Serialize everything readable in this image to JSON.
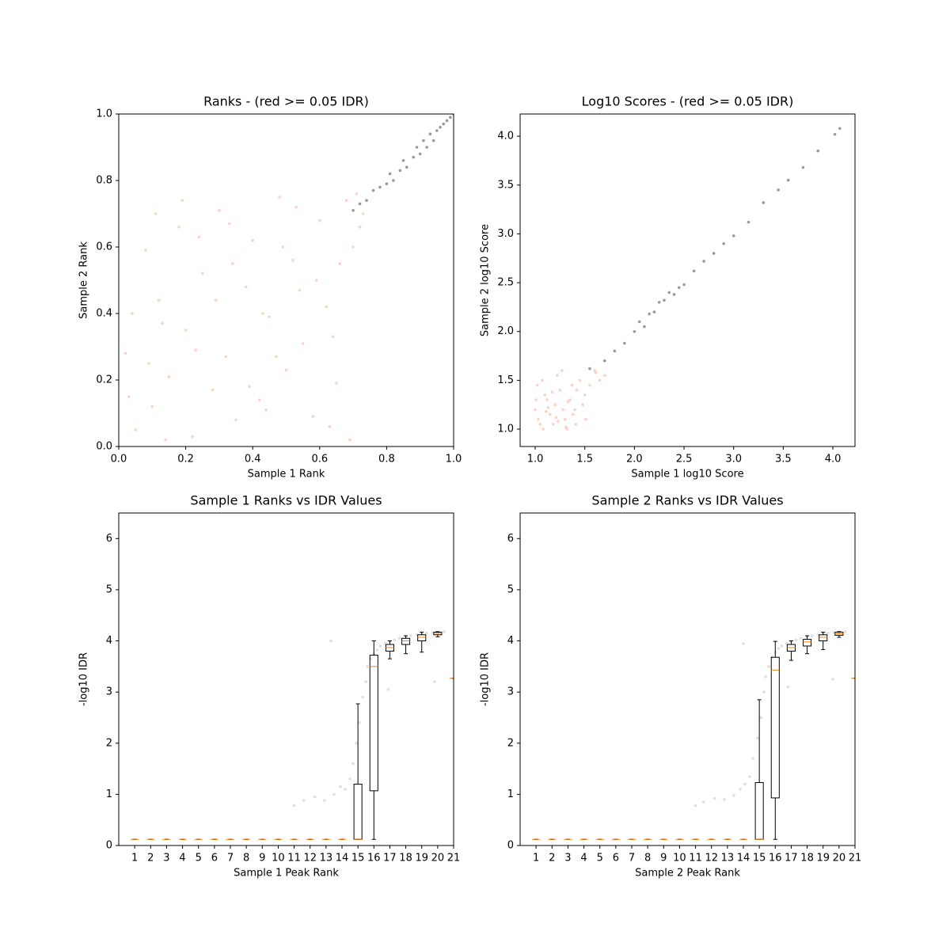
{
  "chart_data": [
    {
      "type": "scatter",
      "title": "Ranks - (red >= 0.05 IDR)",
      "x_label": "Sample 1 Rank",
      "y_label": "Sample 2 Rank",
      "xlim": [
        0,
        1
      ],
      "ylim": [
        0,
        1
      ],
      "xticks": [
        {
          "value": 0,
          "label": "0.0"
        },
        0.2,
        0.4,
        0.6,
        0.8,
        {
          "value": 1,
          "label": "1.0"
        }
      ],
      "yticks": [
        {
          "value": 0,
          "label": "0.0"
        },
        0.2,
        0.4,
        0.6,
        0.8,
        {
          "value": 1,
          "label": "1.0"
        }
      ],
      "series": [
        {
          "color": "#fc8d6a",
          "x": [
            0.02,
            0.05,
            0.08,
            0.1,
            0.12,
            0.15,
            0.18,
            0.2,
            0.22,
            0.25,
            0.28,
            0.3,
            0.32,
            0.35,
            0.38,
            0.4,
            0.42,
            0.45,
            0.48,
            0.5,
            0.52,
            0.55,
            0.58,
            0.6,
            0.62,
            0.65,
            0.68,
            0.7,
            0.72,
            0.04,
            0.14,
            0.24,
            0.34,
            0.44,
            0.54,
            0.64,
            0.09,
            0.19,
            0.29,
            0.39,
            0.49,
            0.59,
            0.69,
            0.03,
            0.13,
            0.23,
            0.33,
            0.43,
            0.53,
            0.63,
            0.73,
            0.66,
            0.71,
            0.11,
            0.47
          ],
          "values": [
            0.28,
            0.05,
            0.59,
            0.12,
            0.44,
            0.21,
            0.66,
            0.35,
            0.03,
            0.52,
            0.17,
            0.71,
            0.27,
            0.08,
            0.48,
            0.62,
            0.14,
            0.39,
            0.75,
            0.23,
            0.56,
            0.31,
            0.09,
            0.68,
            0.42,
            0.19,
            0.74,
            0.6,
            0.66,
            0.4,
            0.02,
            0.63,
            0.55,
            0.11,
            0.47,
            0.33,
            0.25,
            0.74,
            0.44,
            0.18,
            0.6,
            0.5,
            0.02,
            0.15,
            0.37,
            0.29,
            0.67,
            0.4,
            0.72,
            0.06,
            0.7,
            0.55,
            0.76,
            0.7,
            0.27
          ]
        },
        {
          "color": "#000000",
          "x": [
            0.7,
            0.72,
            0.74,
            0.76,
            0.78,
            0.8,
            0.81,
            0.82,
            0.84,
            0.85,
            0.86,
            0.88,
            0.89,
            0.9,
            0.91,
            0.92,
            0.93,
            0.94,
            0.95,
            0.96,
            0.97,
            0.98,
            0.99,
            1.0
          ],
          "values": [
            0.71,
            0.73,
            0.74,
            0.77,
            0.78,
            0.79,
            0.82,
            0.8,
            0.83,
            0.86,
            0.84,
            0.87,
            0.9,
            0.88,
            0.92,
            0.9,
            0.94,
            0.92,
            0.95,
            0.96,
            0.97,
            0.98,
            0.99,
            1.0
          ]
        }
      ]
    },
    {
      "type": "scatter",
      "title": "Log10 Scores - (red >= 0.05 IDR)",
      "x_label": "Sample 1 log10 Score",
      "y_label": "Sample 2 log10 Score",
      "xlim": [
        0.848,
        4.223
      ],
      "ylim": [
        0.822,
        4.228
      ],
      "xticks": [
        {
          "value": 1,
          "label": "1.0"
        },
        1.5,
        {
          "value": 2,
          "label": "2.0"
        },
        2.5,
        {
          "value": 3,
          "label": "3.0"
        },
        3.5,
        {
          "value": 4,
          "label": "4.0"
        }
      ],
      "yticks": [
        {
          "value": 1,
          "label": "1.0"
        },
        1.5,
        {
          "value": 2,
          "label": "2.0"
        },
        2.5,
        {
          "value": 3,
          "label": "3.0"
        },
        3.5,
        {
          "value": 4,
          "label": "4.0"
        }
      ],
      "series": [
        {
          "color": "#fc8d6a",
          "x": [
            1.0,
            1.05,
            1.1,
            1.15,
            1.2,
            1.25,
            1.3,
            1.35,
            1.4,
            1.45,
            1.5,
            1.55,
            1.6,
            1.65,
            1.7,
            1.02,
            1.08,
            1.12,
            1.18,
            1.22,
            1.28,
            1.32,
            1.38,
            1.42,
            1.48,
            1.03,
            1.07,
            1.13,
            1.17,
            1.23,
            1.27,
            1.33,
            1.37,
            1.01,
            1.11,
            1.21,
            1.31,
            1.41,
            1.51,
            1.61
          ],
          "values": [
            1.2,
            1.05,
            1.35,
            1.15,
            1.25,
            1.4,
            1.1,
            1.3,
            1.2,
            1.5,
            1.35,
            1.45,
            1.6,
            1.5,
            1.55,
            1.45,
            1.0,
            1.3,
            1.05,
            1.55,
            1.2,
            1.0,
            1.15,
            1.4,
            1.25,
            1.1,
            1.5,
            1.22,
            1.38,
            1.08,
            1.6,
            1.28,
            1.45,
            1.3,
            1.18,
            1.12,
            1.02,
            1.05,
            1.1,
            1.58
          ]
        },
        {
          "color": "#000000",
          "x": [
            1.55,
            1.7,
            1.8,
            1.9,
            2.0,
            2.05,
            2.1,
            2.15,
            2.2,
            2.25,
            2.3,
            2.35,
            2.4,
            2.45,
            2.5,
            2.6,
            2.7,
            2.8,
            2.9,
            3.0,
            3.15,
            3.3,
            3.45,
            3.55,
            3.7,
            3.85,
            4.02,
            4.07
          ],
          "values": [
            1.62,
            1.7,
            1.8,
            1.88,
            2.0,
            2.1,
            2.05,
            2.18,
            2.2,
            2.3,
            2.32,
            2.4,
            2.38,
            2.45,
            2.48,
            2.62,
            2.72,
            2.8,
            2.9,
            2.98,
            3.12,
            3.32,
            3.45,
            3.55,
            3.68,
            3.85,
            4.02,
            4.08
          ]
        }
      ]
    },
    {
      "type": "box",
      "title": "Sample 1 Ranks vs IDR Values",
      "x_label": "Sample 1 Peak Rank",
      "y_label": "-log10 IDR",
      "xlim": [
        0,
        21
      ],
      "ylim": [
        0,
        6.5
      ],
      "xticks": [
        1,
        2,
        3,
        4,
        5,
        6,
        7,
        8,
        9,
        10,
        11,
        12,
        13,
        14,
        15,
        16,
        17,
        18,
        19,
        20,
        21
      ],
      "yticks": [
        0,
        1,
        2,
        3,
        4,
        5,
        6
      ],
      "median_color": "#ff7f0e",
      "points": {
        "color": "#808080",
        "x": [
          11,
          11.6,
          12.3,
          12.9,
          13.5,
          13.9,
          14.2,
          14.5,
          14.7,
          14.9,
          15.1,
          15.3,
          15.5,
          15.6,
          15.8,
          16.0,
          16.2,
          16.4,
          16.7,
          17.0,
          17.3,
          17.6,
          18.0,
          18.3,
          18.7,
          19.0,
          19.3,
          19.7,
          20.0,
          20.4,
          13.3,
          16.9,
          19.8
        ],
        "values": [
          0.78,
          0.88,
          0.95,
          0.88,
          1.0,
          1.15,
          1.1,
          1.3,
          1.6,
          2.0,
          2.4,
          2.9,
          3.2,
          3.5,
          3.65,
          3.75,
          3.82,
          3.9,
          3.95,
          3.98,
          4.02,
          4.05,
          4.08,
          4.1,
          4.12,
          4.14,
          4.15,
          4.16,
          4.17,
          4.18,
          4.0,
          3.05,
          3.2
        ]
      },
      "boxes": {
        "whislo": [
          0.12,
          0.12,
          0.12,
          0.12,
          0.12,
          0.12,
          0.12,
          0.12,
          0.12,
          0.12,
          0.12,
          0.12,
          0.12,
          0.12,
          0.12,
          0.12,
          3.65,
          3.75,
          3.78,
          4.08,
          3.27
        ],
        "q1": [
          0.12,
          0.12,
          0.12,
          0.12,
          0.12,
          0.12,
          0.12,
          0.12,
          0.12,
          0.12,
          0.12,
          0.12,
          0.12,
          0.12,
          0.12,
          1.07,
          3.8,
          3.93,
          4.0,
          4.12,
          3.27
        ],
        "med": [
          0.12,
          0.12,
          0.12,
          0.12,
          0.12,
          0.12,
          0.12,
          0.12,
          0.12,
          0.12,
          0.12,
          0.12,
          0.12,
          0.12,
          0.12,
          3.5,
          3.87,
          4.0,
          4.07,
          4.15,
          3.27
        ],
        "q3": [
          0.12,
          0.12,
          0.12,
          0.12,
          0.12,
          0.12,
          0.12,
          0.12,
          0.12,
          0.12,
          0.12,
          0.12,
          0.12,
          0.12,
          1.2,
          3.72,
          3.93,
          4.05,
          4.12,
          4.17,
          3.27
        ],
        "whishi": [
          0.12,
          0.12,
          0.12,
          0.12,
          0.12,
          0.12,
          0.12,
          0.12,
          0.12,
          0.12,
          0.12,
          0.12,
          0.12,
          0.12,
          2.77,
          4.0,
          4.0,
          4.1,
          4.17,
          4.18,
          3.27
        ]
      }
    },
    {
      "type": "box",
      "title": "Sample 2 Ranks vs IDR Values",
      "x_label": "Sample 2 Peak Rank",
      "y_label": "-log10 IDR",
      "xlim": [
        0,
        21
      ],
      "ylim": [
        0,
        6.5
      ],
      "xticks": [
        1,
        2,
        3,
        4,
        5,
        6,
        7,
        8,
        9,
        10,
        11,
        12,
        13,
        14,
        15,
        16,
        17,
        18,
        19,
        20,
        21
      ],
      "yticks": [
        0,
        1,
        2,
        3,
        4,
        5,
        6
      ],
      "median_color": "#ff7f0e",
      "points": {
        "color": "#808080",
        "x": [
          11,
          11.5,
          12.2,
          12.8,
          13.4,
          13.8,
          14.1,
          14.4,
          14.6,
          14.9,
          15.1,
          15.3,
          15.4,
          15.6,
          15.8,
          16.0,
          16.2,
          16.4,
          16.7,
          17.0,
          17.3,
          17.6,
          18.0,
          18.3,
          18.7,
          19.0,
          19.3,
          19.7,
          20.0,
          20.4,
          14.0,
          16.8,
          19.6
        ],
        "values": [
          0.78,
          0.85,
          0.92,
          0.9,
          0.98,
          1.1,
          1.2,
          1.35,
          1.7,
          2.1,
          2.5,
          3.0,
          3.3,
          3.5,
          3.68,
          3.78,
          3.85,
          3.9,
          3.95,
          3.99,
          4.02,
          4.05,
          4.08,
          4.1,
          4.12,
          4.14,
          4.15,
          4.16,
          4.17,
          4.18,
          3.95,
          3.1,
          3.25
        ]
      },
      "boxes": {
        "whislo": [
          0.12,
          0.12,
          0.12,
          0.12,
          0.12,
          0.12,
          0.12,
          0.12,
          0.12,
          0.12,
          0.12,
          0.12,
          0.12,
          0.12,
          0.12,
          0.12,
          3.62,
          3.75,
          3.83,
          4.07,
          3.27
        ],
        "q1": [
          0.12,
          0.12,
          0.12,
          0.12,
          0.12,
          0.12,
          0.12,
          0.12,
          0.12,
          0.12,
          0.12,
          0.12,
          0.12,
          0.12,
          0.12,
          0.93,
          3.8,
          3.9,
          4.0,
          4.11,
          3.27
        ],
        "med": [
          0.12,
          0.12,
          0.12,
          0.12,
          0.12,
          0.12,
          0.12,
          0.12,
          0.12,
          0.12,
          0.12,
          0.12,
          0.12,
          0.12,
          0.12,
          3.43,
          3.87,
          3.98,
          4.07,
          4.14,
          3.27
        ],
        "q3": [
          0.12,
          0.12,
          0.12,
          0.12,
          0.12,
          0.12,
          0.12,
          0.12,
          0.12,
          0.12,
          0.12,
          0.12,
          0.12,
          0.12,
          1.23,
          3.68,
          3.93,
          4.03,
          4.12,
          4.17,
          3.27
        ],
        "whishi": [
          0.12,
          0.12,
          0.12,
          0.12,
          0.12,
          0.12,
          0.12,
          0.12,
          0.12,
          0.12,
          0.12,
          0.12,
          0.12,
          0.12,
          2.85,
          3.99,
          4.0,
          4.1,
          4.17,
          4.18,
          3.27
        ]
      }
    }
  ]
}
